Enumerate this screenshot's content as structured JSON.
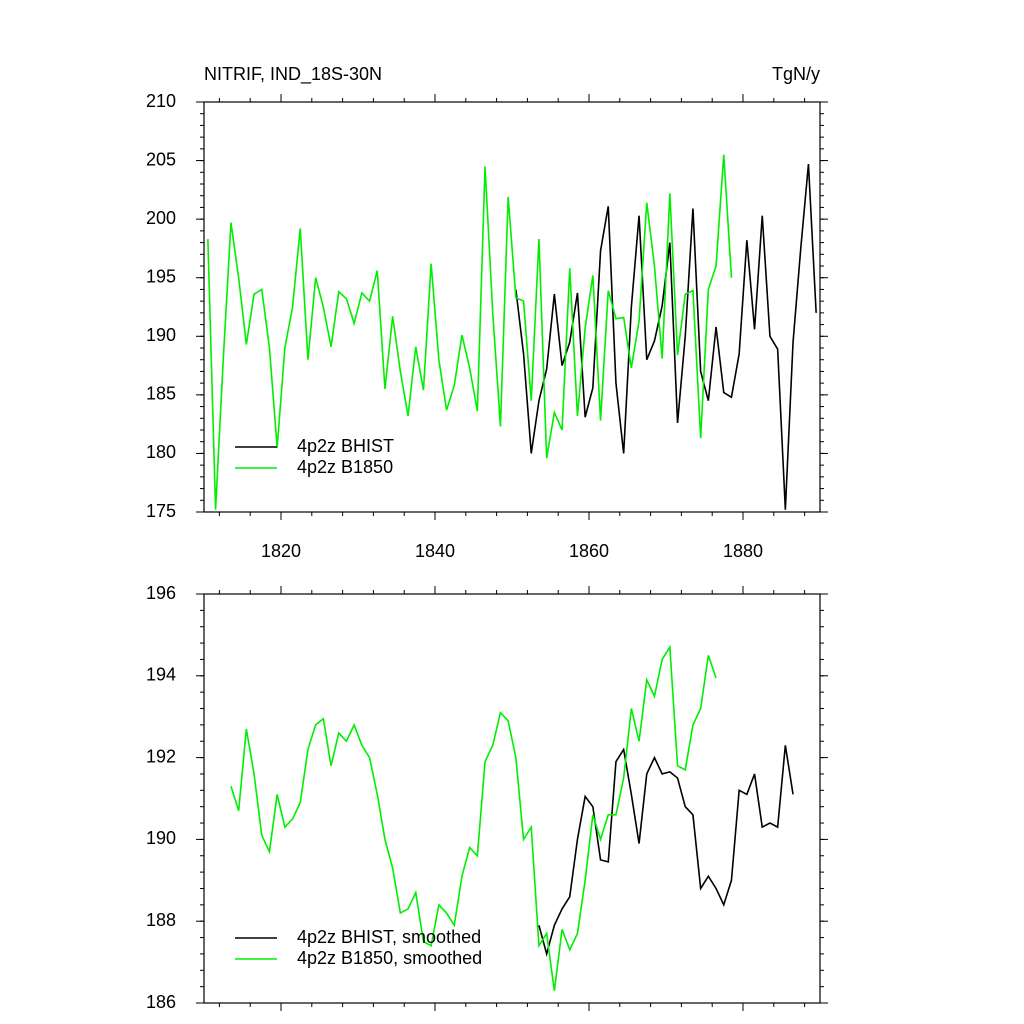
{
  "chart_data": [
    {
      "type": "line",
      "title": "NITRIF, IND_18S-30N",
      "right_title": "TgN/y",
      "xlim": [
        1810,
        1890
      ],
      "xticks": [
        1820,
        1840,
        1860,
        1880
      ],
      "show_xtick_labels": true,
      "ylim": [
        175,
        210
      ],
      "yticks": [
        175,
        180,
        185,
        190,
        195,
        200,
        205,
        210
      ],
      "legend": "lower left",
      "series": [
        {
          "name": "4p2z BHIST",
          "color": "#000000",
          "x": [
            1850.5,
            1851.5,
            1852.5,
            1853.5,
            1854.5,
            1855.5,
            1856.5,
            1857.5,
            1858.5,
            1859.5,
            1860.5,
            1861.5,
            1862.5,
            1863.5,
            1864.5,
            1865.5,
            1866.5,
            1867.5,
            1868.5,
            1869.5,
            1870.5,
            1871.5,
            1872.5,
            1873.5,
            1874.5,
            1875.5,
            1876.5,
            1877.5,
            1878.5,
            1879.5,
            1880.5,
            1881.5,
            1882.5,
            1883.5,
            1884.5,
            1885.5,
            1886.5,
            1887.5,
            1888.5,
            1889.5
          ],
          "values": [
            194,
            188.5,
            180,
            184.5,
            187.2,
            193.6,
            187.5,
            189.5,
            193.7,
            183.1,
            185.6,
            197.3,
            201.1,
            186,
            180,
            192.5,
            200.3,
            188,
            189.6,
            192.6,
            198,
            182.6,
            190,
            200.9,
            187,
            184.5,
            190.8,
            185.2,
            184.8,
            188.5,
            198.2,
            190.6,
            200.3,
            190,
            188.9,
            175.2,
            189.5,
            197.5,
            204.7,
            192
          ]
        },
        {
          "name": "4p2z B1850",
          "color": "#00ee00",
          "x": [
            1810.5,
            1811.5,
            1812.5,
            1813.5,
            1814.5,
            1815.5,
            1816.5,
            1817.5,
            1818.5,
            1819.5,
            1820.5,
            1821.5,
            1822.5,
            1823.5,
            1824.5,
            1825.5,
            1826.5,
            1827.5,
            1828.5,
            1829.5,
            1830.5,
            1831.5,
            1832.5,
            1833.5,
            1834.5,
            1835.5,
            1836.5,
            1837.5,
            1838.5,
            1839.5,
            1840.5,
            1841.5,
            1842.5,
            1843.5,
            1844.5,
            1845.5,
            1846.5,
            1847.5,
            1848.5,
            1849.5,
            1850.5,
            1851.5,
            1852.5,
            1853.5,
            1854.5,
            1855.5,
            1856.5,
            1857.5,
            1858.5,
            1859.5,
            1860.5,
            1861.5,
            1862.5,
            1863.5,
            1864.5,
            1865.5,
            1866.5,
            1867.5,
            1868.5,
            1869.5,
            1870.5,
            1871.5,
            1872.5,
            1873.5,
            1874.5,
            1875.5,
            1876.5,
            1877.5,
            1878.5
          ],
          "values": [
            198.3,
            175.2,
            188,
            199.7,
            195,
            189.3,
            193.6,
            194,
            189,
            180.5,
            189,
            192.5,
            199.2,
            188,
            195,
            192.5,
            189.1,
            193.8,
            193.2,
            191.1,
            193.7,
            193,
            195.6,
            185.5,
            191.7,
            187,
            183.2,
            189.1,
            185.4,
            196.2,
            188,
            183.7,
            185.8,
            190.1,
            187.3,
            183.6,
            204.5,
            192,
            182.3,
            201.9,
            193.3,
            193,
            184.5,
            198.3,
            179.6,
            183.5,
            182,
            195.8,
            183.2,
            190.7,
            195.2,
            182.8,
            193.9,
            191.5,
            191.6,
            187.3,
            191.3,
            201.4,
            196,
            188.1,
            202.2,
            188.4,
            193.6,
            193.9,
            181.3,
            194,
            196,
            205.5,
            195
          ]
        }
      ]
    },
    {
      "type": "line",
      "xlim": [
        1810,
        1890
      ],
      "xticks": [
        1820,
        1840,
        1860,
        1880
      ],
      "show_xtick_labels": false,
      "ylim": [
        186,
        196
      ],
      "yticks": [
        186,
        188,
        190,
        192,
        194,
        196
      ],
      "legend": "lower left",
      "series": [
        {
          "name": "4p2z BHIST, smoothed",
          "color": "#000000",
          "x": [
            1853.5,
            1854.5,
            1855.5,
            1856.5,
            1857.5,
            1858.5,
            1859.5,
            1860.5,
            1861.5,
            1862.5,
            1863.5,
            1864.5,
            1865.5,
            1866.5,
            1867.5,
            1868.5,
            1869.5,
            1870.5,
            1871.5,
            1872.5,
            1873.5,
            1874.5,
            1875.5,
            1876.5,
            1877.5,
            1878.5,
            1879.5,
            1880.5,
            1881.5,
            1882.5,
            1883.5,
            1884.5,
            1885.5,
            1886.5
          ],
          "values": [
            187.9,
            187.2,
            187.9,
            188.3,
            188.6,
            190,
            191.05,
            190.8,
            189.5,
            189.45,
            191.9,
            192.2,
            191.1,
            189.9,
            191.6,
            192,
            191.6,
            191.65,
            191.5,
            190.8,
            190.6,
            188.8,
            189.1,
            188.8,
            188.4,
            189,
            191.2,
            191.1,
            191.6,
            190.3,
            190.4,
            190.3,
            192.3,
            191.1
          ]
        },
        {
          "name": "4p2z B1850, smoothed",
          "color": "#00ee00",
          "x": [
            1813.5,
            1814.5,
            1815.5,
            1816.5,
            1817.5,
            1818.5,
            1819.5,
            1820.5,
            1821.5,
            1822.5,
            1823.5,
            1824.5,
            1825.5,
            1826.5,
            1827.5,
            1828.5,
            1829.5,
            1830.5,
            1831.5,
            1832.5,
            1833.5,
            1834.5,
            1835.5,
            1836.5,
            1837.5,
            1838.5,
            1839.5,
            1840.5,
            1841.5,
            1842.5,
            1843.5,
            1844.5,
            1845.5,
            1846.5,
            1847.5,
            1848.5,
            1849.5,
            1850.5,
            1851.5,
            1852.5,
            1853.5,
            1854.5,
            1855.5,
            1856.5,
            1857.5,
            1858.5,
            1859.5,
            1860.5,
            1861.5,
            1862.5,
            1863.5,
            1864.5,
            1865.5,
            1866.5,
            1867.5,
            1868.5,
            1869.5,
            1870.5,
            1871.5,
            1872.5,
            1873.5,
            1874.5,
            1875.5,
            1876.5
          ],
          "values": [
            191.3,
            190.7,
            192.7,
            191.6,
            190.1,
            189.7,
            191.1,
            190.3,
            190.5,
            190.9,
            192.2,
            192.8,
            192.95,
            191.8,
            192.6,
            192.4,
            192.8,
            192.3,
            192,
            191.1,
            190,
            189.3,
            188.2,
            188.3,
            188.7,
            187.5,
            187.4,
            188.4,
            188.2,
            187.9,
            189.1,
            189.8,
            189.6,
            191.9,
            192.3,
            193.1,
            192.9,
            192,
            190,
            190.3,
            187.4,
            187.7,
            186.3,
            187.8,
            187.3,
            187.7,
            189,
            190.6,
            190,
            190.6,
            190.6,
            191.5,
            193.2,
            192.4,
            193.9,
            193.5,
            194.4,
            194.7,
            191.8,
            191.7,
            192.8,
            193.2,
            194.5,
            193.95
          ]
        }
      ]
    }
  ]
}
